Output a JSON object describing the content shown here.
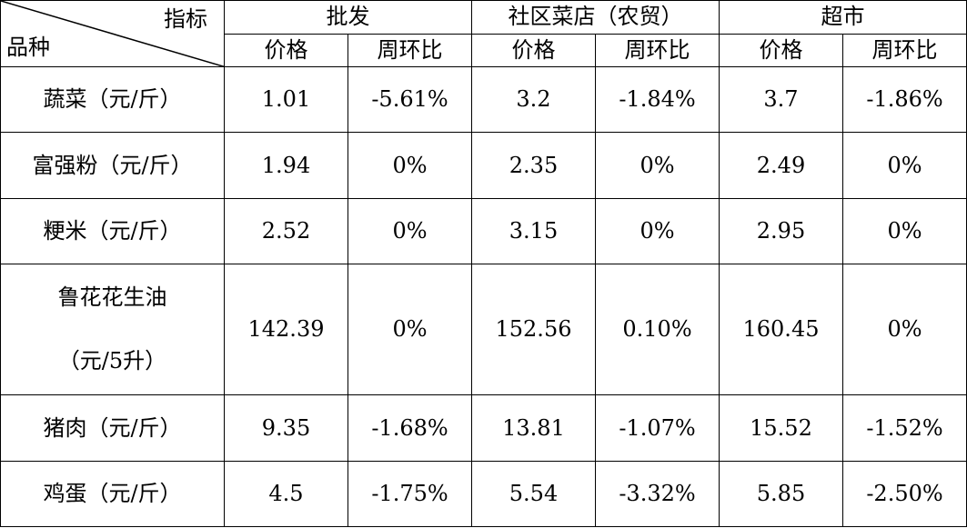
{
  "header": {
    "indicator_label": "指标",
    "variety_label": "品种",
    "groups": [
      "批发",
      "社区菜店（农贸）",
      "超市"
    ],
    "sub_columns": [
      "价格",
      "周环比"
    ]
  },
  "rows": [
    {
      "name_line1": "蔬菜（元/斤）",
      "name_line2": "",
      "values": [
        "1.01",
        "-5.61%",
        "3.2",
        "-1.84%",
        "3.7",
        "-1.86%"
      ]
    },
    {
      "name_line1": "富强粉（元/斤）",
      "name_line2": "",
      "values": [
        "1.94",
        "0%",
        "2.35",
        "0%",
        "2.49",
        "0%"
      ]
    },
    {
      "name_line1": "粳米（元/斤）",
      "name_line2": "",
      "values": [
        "2.52",
        "0%",
        "3.15",
        "0%",
        "2.95",
        "0%"
      ]
    },
    {
      "name_line1": "鲁花花生油",
      "name_line2": "（元/5升）",
      "values": [
        "142.39",
        "0%",
        "152.56",
        "0.10%",
        "160.45",
        "0%"
      ]
    },
    {
      "name_line1": "猪肉（元/斤）",
      "name_line2": "",
      "values": [
        "9.35",
        "-1.68%",
        "13.81",
        "-1.07%",
        "15.52",
        "-1.52%"
      ]
    },
    {
      "name_line1": "鸡蛋（元/斤）",
      "name_line2": "",
      "values": [
        "4.5",
        "-1.75%",
        "5.54",
        "-3.32%",
        "5.85",
        "-2.50%"
      ]
    }
  ]
}
